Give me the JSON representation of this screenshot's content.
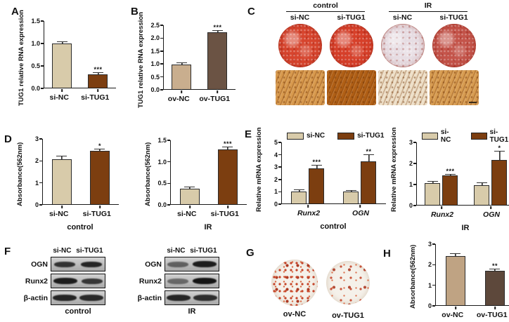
{
  "panels": {
    "A": {
      "letter": "A"
    },
    "B": {
      "letter": "B"
    },
    "C": {
      "letter": "C"
    },
    "D": {
      "letter": "D"
    },
    "E": {
      "letter": "E"
    },
    "F": {
      "letter": "F"
    },
    "G": {
      "letter": "G"
    },
    "H": {
      "letter": "H"
    }
  },
  "chart_data": [
    {
      "id": "A",
      "type": "bar",
      "ylabel": "TUG1 relative RNA expression",
      "yticks": [
        "1.5",
        "1.0",
        "0.5",
        "0.0"
      ],
      "ylim": [
        0,
        1.5
      ],
      "categories": [
        "si-NC",
        "si-TUG1"
      ],
      "values": [
        1.0,
        0.3
      ],
      "errors": [
        0.02,
        0.03
      ],
      "sig": [
        "",
        "***"
      ],
      "colors": [
        "#d8cbaa",
        "#7c3e10"
      ],
      "xlabel": ""
    },
    {
      "id": "B",
      "type": "bar",
      "ylabel": "TUG1 relative RNA expression",
      "yticks": [
        "2.5",
        "2.0",
        "1.5",
        "1.0",
        "0.5",
        "0.0"
      ],
      "ylim": [
        0,
        2.5
      ],
      "categories": [
        "ov-NC",
        "ov-TUG1"
      ],
      "values": [
        0.97,
        2.3
      ],
      "errors": [
        0.04,
        0.05
      ],
      "sig": [
        "",
        "***"
      ],
      "colors": [
        "#c9ae8e",
        "#6b5344"
      ],
      "xlabel": ""
    },
    {
      "id": "D-control",
      "type": "bar",
      "ylabel": "Absorbance(562nm)",
      "yticks": [
        "3",
        "2",
        "1",
        "0"
      ],
      "ylim": [
        0,
        3
      ],
      "categories": [
        "si-NC",
        "si-TUG1"
      ],
      "values": [
        2.07,
        2.45
      ],
      "errors": [
        0.12,
        0.06
      ],
      "sig": [
        "",
        "*"
      ],
      "colors": [
        "#d8cbaa",
        "#7c3e10"
      ],
      "xlabel": "control"
    },
    {
      "id": "D-IR",
      "type": "bar",
      "ylabel": "Absorbance(562nm)",
      "yticks": [
        "1.5",
        "1.0",
        "0.5",
        "0.0"
      ],
      "ylim": [
        0,
        1.5
      ],
      "categories": [
        "si-NC",
        "si-TUG1"
      ],
      "values": [
        0.37,
        1.28
      ],
      "errors": [
        0.03,
        0.06
      ],
      "sig": [
        "",
        "***"
      ],
      "colors": [
        "#d8cbaa",
        "#7c3e10"
      ],
      "xlabel": "IR"
    },
    {
      "id": "E-control",
      "type": "grouped-bar",
      "ylabel": "Relative mRNA expression",
      "yticks": [
        "5",
        "4",
        "3",
        "2",
        "1",
        "0"
      ],
      "ylim": [
        0,
        5
      ],
      "categories": [
        "Runx2",
        "OGN"
      ],
      "legend": [
        "si-NC",
        "si-TUG1"
      ],
      "series": [
        {
          "name": "si-NC",
          "values": [
            1.0,
            0.95
          ]
        },
        {
          "name": "si-TUG1",
          "values": [
            2.9,
            3.45
          ]
        }
      ],
      "errors": [
        [
          0.03,
          0.06
        ],
        [
          0.22,
          0.5
        ]
      ],
      "sig": [
        [
          "",
          ""
        ],
        [
          "***",
          "**"
        ]
      ],
      "colors": [
        "#d8cbaa",
        "#7c3e10"
      ],
      "xlabel": "control"
    },
    {
      "id": "E-IR",
      "type": "grouped-bar",
      "ylabel": "Relative mRNA expression",
      "yticks": [
        "3",
        "2",
        "1",
        "0"
      ],
      "ylim": [
        0,
        3
      ],
      "categories": [
        "Runx2",
        "OGN"
      ],
      "legend": [
        "si-NC",
        "si-TUG1"
      ],
      "series": [
        {
          "name": "si-NC",
          "values": [
            1.05,
            0.95
          ]
        },
        {
          "name": "si-TUG1",
          "values": [
            1.4,
            2.15
          ]
        }
      ],
      "errors": [
        [
          0.05,
          0.1
        ],
        [
          0.05,
          0.4
        ]
      ],
      "sig": [
        [
          "",
          ""
        ],
        [
          "***",
          "*"
        ]
      ],
      "colors": [
        "#d8cbaa",
        "#7c3e10"
      ],
      "xlabel": "IR"
    },
    {
      "id": "H",
      "type": "bar",
      "ylabel": "Absorbance(562nm)",
      "yticks": [
        "3",
        "2",
        "1",
        "0"
      ],
      "ylim": [
        0,
        3
      ],
      "categories": [
        "ov-NC",
        "ov-TUG1"
      ],
      "values": [
        2.4,
        1.7
      ],
      "errors": [
        0.13,
        0.04
      ],
      "sig": [
        "",
        "**"
      ],
      "colors": [
        "#bfa383",
        "#5d483b"
      ],
      "xlabel": ""
    }
  ],
  "panelC": {
    "groups": [
      {
        "label": "control",
        "columns": [
          "si-NC",
          "si-TUG1"
        ]
      },
      {
        "label": "IR",
        "columns": [
          "si-NC",
          "si-TUG1"
        ]
      }
    ],
    "dish_colors": [
      "#d7452e",
      "#d7402a",
      "#e7dde3",
      "#c4544a"
    ],
    "micro_colors": [
      "#d89a4e",
      "#b16016",
      "#eee0c9",
      "#d89d52"
    ]
  },
  "panelF": {
    "groups": [
      {
        "condition": "control",
        "col_labels": [
          "si-NC",
          "si-TUG1"
        ],
        "rows": [
          {
            "label": "OGN",
            "bands": [
              0.82,
              0.9
            ]
          },
          {
            "label": "Runx2",
            "bands": [
              0.95,
              0.8
            ]
          },
          {
            "label": "β-actin",
            "bands": [
              0.9,
              0.88
            ]
          }
        ]
      },
      {
        "condition": "IR",
        "col_labels": [
          "si-NC",
          "si-TUG1"
        ],
        "rows": [
          {
            "label": "OGN",
            "bands": [
              0.55,
              0.95
            ]
          },
          {
            "label": "Runx2",
            "bands": [
              0.5,
              1.0
            ]
          },
          {
            "label": "β-actin",
            "bands": [
              0.9,
              0.85
            ]
          }
        ]
      }
    ]
  },
  "panelG": {
    "labels": [
      "ov-NC",
      "ov-TUG1"
    ]
  }
}
